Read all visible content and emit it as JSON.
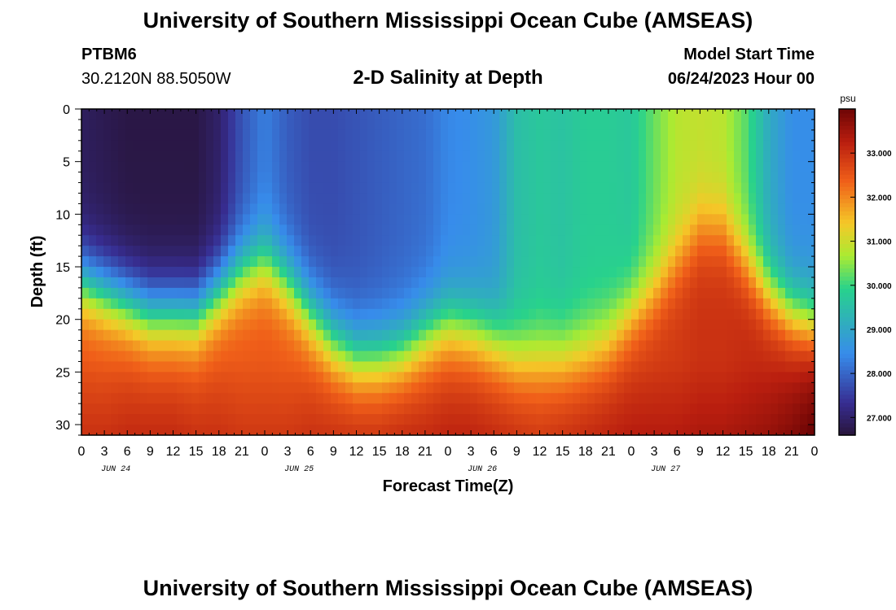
{
  "page": {
    "title": "University of Southern Mississippi Ocean Cube (AMSEAS)",
    "footer_title": "University of Southern Mississippi Ocean Cube (AMSEAS)",
    "station": "PTBM6",
    "coordinates": "30.2120N  88.5050W",
    "model_start_label": "Model Start Time",
    "model_start_value": "06/24/2023 Hour 00"
  },
  "chart_data": {
    "type": "heatmap",
    "title": "2-D Salinity at Depth",
    "xlabel": "Forecast Time(Z)",
    "ylabel": "Depth (ft)",
    "x_ticks": [
      "0",
      "3",
      "6",
      "9",
      "12",
      "15",
      "18",
      "21",
      "0",
      "3",
      "6",
      "9",
      "12",
      "15",
      "18",
      "21",
      "0",
      "3",
      "6",
      "9",
      "12",
      "15",
      "18",
      "21",
      "0",
      "3",
      "6",
      "9",
      "12",
      "15",
      "18",
      "21",
      "0"
    ],
    "x_day_labels": [
      "JUN 24",
      "JUN 25",
      "JUN 26",
      "JUN 27"
    ],
    "xlim": [
      0,
      96
    ],
    "y_ticks": [
      "0",
      "5",
      "10",
      "15",
      "20",
      "25",
      "30"
    ],
    "ylim": [
      0,
      31
    ],
    "y_inverted": true,
    "colorbar": {
      "unit": "psu",
      "range": [
        26.6,
        34.0
      ],
      "ticks": [
        "27.000",
        "28.000",
        "29.000",
        "30.000",
        "31.000",
        "32.000",
        "33.000"
      ]
    },
    "x_hours": [
      0,
      3,
      6,
      9,
      12,
      15,
      18,
      21,
      24,
      27,
      30,
      33,
      36,
      39,
      42,
      45,
      48,
      51,
      54,
      57,
      60,
      63,
      66,
      69,
      72,
      75,
      78,
      81,
      84,
      87,
      90,
      93,
      96
    ],
    "halocline_depth_ft": [
      14,
      15,
      16,
      17,
      17,
      17,
      15,
      13,
      12,
      14,
      17,
      19.5,
      21,
      21,
      20.5,
      19,
      18,
      18.5,
      19.5,
      21,
      21,
      21,
      20.5,
      19.5,
      17,
      15,
      12,
      9,
      9,
      12,
      15,
      17,
      18
    ],
    "surface_salinity_psu": [
      26.9,
      26.8,
      26.7,
      26.7,
      26.7,
      26.7,
      27.0,
      27.8,
      28.3,
      27.9,
      27.7,
      27.7,
      27.8,
      27.9,
      28.0,
      28.1,
      28.4,
      28.5,
      28.7,
      29.5,
      29.7,
      29.6,
      29.8,
      29.8,
      29.7,
      30.3,
      30.8,
      30.9,
      30.8,
      30.2,
      29.1,
      28.5,
      28.5
    ],
    "bottom_salinity_psu": [
      32.6,
      32.6,
      32.7,
      32.7,
      32.7,
      32.6,
      32.6,
      32.5,
      32.5,
      32.5,
      32.6,
      32.6,
      32.6,
      32.6,
      32.7,
      32.7,
      32.8,
      32.8,
      32.7,
      32.6,
      32.5,
      32.6,
      32.7,
      32.8,
      32.9,
      32.9,
      32.9,
      33.0,
      33.0,
      33.1,
      33.2,
      33.4,
      33.7
    ]
  }
}
